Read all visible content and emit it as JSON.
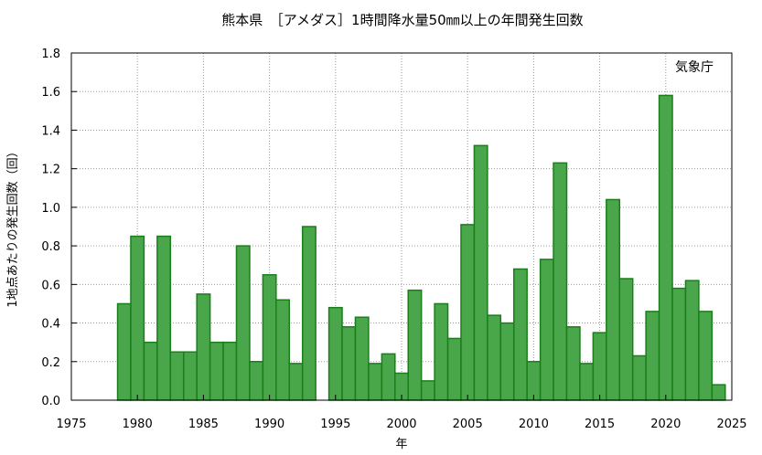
{
  "chart_data": {
    "type": "bar",
    "title": "熊本県　［アメダス］1時間降水量50㎜以上の年間発生回数",
    "xlabel": "年",
    "ylabel": "1地点あたりの発生回数（回）",
    "source_label": "気象庁",
    "xlim": [
      1975,
      2025
    ],
    "ylim": [
      0,
      1.8
    ],
    "xticks": [
      "1975",
      "1980",
      "1985",
      "1990",
      "1995",
      "2000",
      "2005",
      "2010",
      "2015",
      "2020",
      "2025"
    ],
    "yticks": [
      "0.0",
      "0.2",
      "0.4",
      "0.6",
      "0.8",
      "1.0",
      "1.2",
      "1.4",
      "1.6",
      "1.8"
    ],
    "grid": true,
    "bar_color": "#4aa64a",
    "bar_edge_color": "#1a7f1a",
    "years": [
      1979,
      1980,
      1981,
      1982,
      1983,
      1984,
      1985,
      1986,
      1987,
      1988,
      1989,
      1990,
      1991,
      1992,
      1993,
      1994,
      1995,
      1996,
      1997,
      1998,
      1999,
      2000,
      2001,
      2002,
      2003,
      2004,
      2005,
      2006,
      2007,
      2008,
      2009,
      2010,
      2011,
      2012,
      2013,
      2014,
      2015,
      2016,
      2017,
      2018,
      2019,
      2020,
      2021,
      2022,
      2023,
      2024
    ],
    "values": [
      0.5,
      0.85,
      0.3,
      0.85,
      0.25,
      0.25,
      0.55,
      0.3,
      0.3,
      0.8,
      0.2,
      0.65,
      0.52,
      0.19,
      0.9,
      null,
      0.48,
      0.38,
      0.43,
      0.19,
      0.24,
      0.14,
      0.57,
      0.1,
      0.5,
      0.32,
      0.91,
      1.32,
      0.44,
      0.4,
      0.68,
      0.2,
      0.73,
      1.23,
      0.38,
      0.19,
      0.35,
      1.04,
      0.63,
      0.23,
      0.46,
      1.58,
      0.58,
      0.62,
      0.46,
      0.08
    ]
  }
}
